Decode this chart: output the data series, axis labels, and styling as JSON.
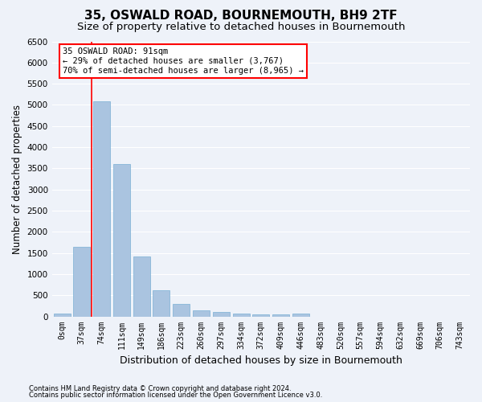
{
  "title1": "35, OSWALD ROAD, BOURNEMOUTH, BH9 2TF",
  "title2": "Size of property relative to detached houses in Bournemouth",
  "xlabel": "Distribution of detached houses by size in Bournemouth",
  "ylabel": "Number of detached properties",
  "footnote1": "Contains HM Land Registry data © Crown copyright and database right 2024.",
  "footnote2": "Contains public sector information licensed under the Open Government Licence v3.0.",
  "bar_labels": [
    "0sqm",
    "37sqm",
    "74sqm",
    "111sqm",
    "149sqm",
    "186sqm",
    "223sqm",
    "260sqm",
    "297sqm",
    "334sqm",
    "372sqm",
    "409sqm",
    "446sqm",
    "483sqm",
    "520sqm",
    "557sqm",
    "594sqm",
    "632sqm",
    "669sqm",
    "706sqm",
    "743sqm"
  ],
  "bar_values": [
    75,
    1650,
    5080,
    3600,
    1420,
    620,
    290,
    150,
    110,
    75,
    55,
    45,
    75,
    0,
    0,
    0,
    0,
    0,
    0,
    0,
    0
  ],
  "bar_color": "#aac4e0",
  "bar_edge_color": "#7aafd4",
  "vline_color": "red",
  "vline_x_index": 2,
  "ylim": [
    0,
    6500
  ],
  "yticks": [
    0,
    500,
    1000,
    1500,
    2000,
    2500,
    3000,
    3500,
    4000,
    4500,
    5000,
    5500,
    6000,
    6500
  ],
  "annotation_text": "35 OSWALD ROAD: 91sqm\n← 29% of detached houses are smaller (3,767)\n70% of semi-detached houses are larger (8,965) →",
  "annotation_box_color": "white",
  "annotation_box_edge": "red",
  "bg_color": "#eef2f9",
  "grid_color": "white",
  "title1_fontsize": 11,
  "title2_fontsize": 9.5,
  "ylabel_fontsize": 8.5,
  "xlabel_fontsize": 9,
  "tick_fontsize": 7,
  "ytick_fontsize": 7.5,
  "footnote_fontsize": 6,
  "ann_fontsize": 7.5
}
